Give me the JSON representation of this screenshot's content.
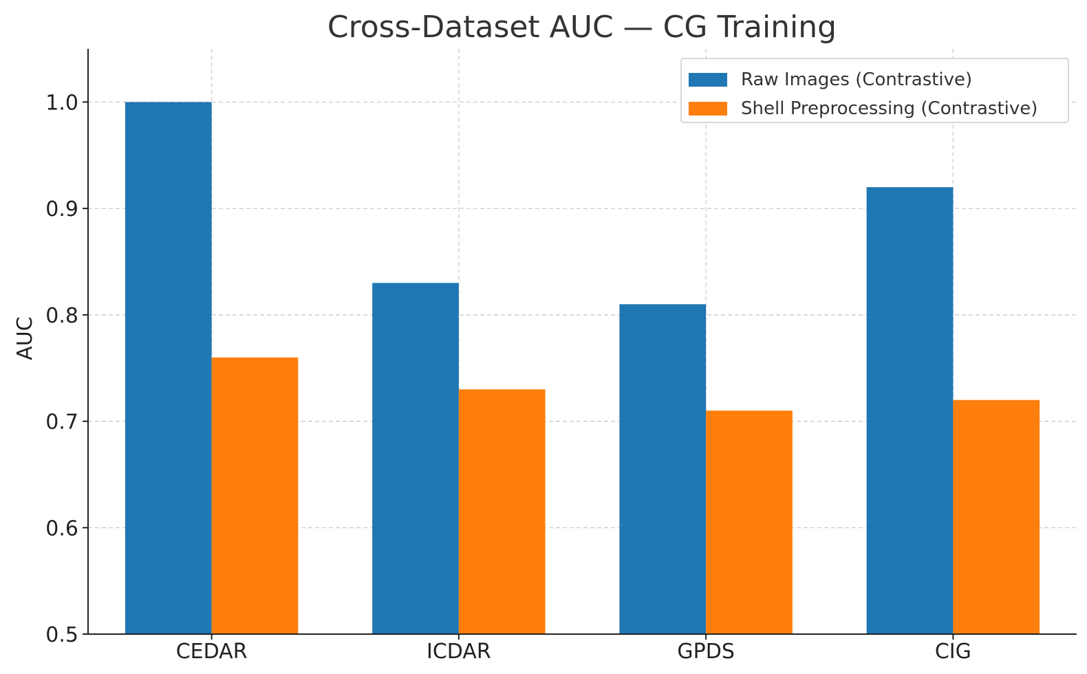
{
  "chart_data": {
    "type": "bar",
    "title": "Cross-Dataset AUC — CG Training",
    "xlabel": "",
    "ylabel": "AUC",
    "categories": [
      "CEDAR",
      "ICDAR",
      "GPDS",
      "CIG"
    ],
    "series": [
      {
        "name": "Raw Images (Contrastive)",
        "color": "#1f77b4",
        "values": [
          1.0,
          0.83,
          0.81,
          0.92
        ]
      },
      {
        "name": "Shell Preprocessing (Contrastive)",
        "color": "#ff7f0e",
        "values": [
          0.76,
          0.73,
          0.71,
          0.72
        ]
      }
    ],
    "ylim": [
      0.5,
      1.05
    ],
    "yticks": [
      "0.5",
      "0.6",
      "0.7",
      "0.8",
      "0.9",
      "1.0"
    ],
    "grid": true,
    "legend_position": "top-right"
  }
}
